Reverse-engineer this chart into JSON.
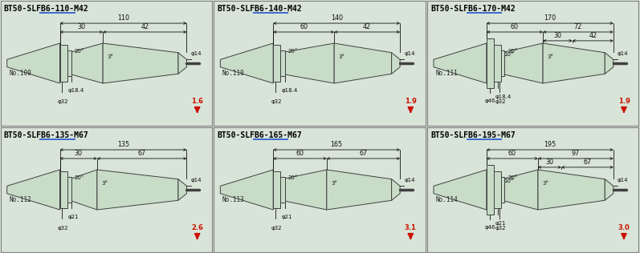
{
  "panels": [
    {
      "title_prefix": "BT50-",
      "title_underlined": "SLFB6",
      "title_suffix": "-110-M42",
      "number": "No.109",
      "dim_total": "110",
      "dim_left": "30",
      "dim_right": "42",
      "angle1": "20°",
      "angle2": "3°",
      "phi_tip": "φ14",
      "phi_mid": "φ18.4",
      "phi_base": "φ32",
      "phi_large": null,
      "weight": "1.6",
      "row": 0,
      "col": 0,
      "angle0": null,
      "dim_left2": null,
      "dim_right2": null
    },
    {
      "title_prefix": "BT50-",
      "title_underlined": "SLFB6",
      "title_suffix": "-140-M42",
      "number": "No.110",
      "dim_total": "140",
      "dim_left": "60",
      "dim_right": "42",
      "angle1": "20°",
      "angle2": "3°",
      "phi_tip": "φ14",
      "phi_mid": "φ18.4",
      "phi_base": "φ32",
      "phi_large": null,
      "weight": "1.9",
      "row": 0,
      "col": 1,
      "angle0": null,
      "dim_left2": null,
      "dim_right2": null
    },
    {
      "title_prefix": "BT50-",
      "title_underlined": "SLFB6",
      "title_suffix": "-170-M42",
      "number": "No.111",
      "dim_total": "170",
      "dim_left": "60",
      "dim_right": "72",
      "dim_left2": "30",
      "dim_right2": "42",
      "angle0": "10°",
      "angle1": "20°",
      "angle2": "3°",
      "phi_tip": "φ14",
      "phi_mid": "φ18.4",
      "phi_base": "φ32",
      "phi_large": "φ46",
      "weight": "1.9",
      "row": 0,
      "col": 2,
      "extra_dim": "170"
    },
    {
      "title_prefix": "BT50-",
      "title_underlined": "SLFB6",
      "title_suffix": "-135-M67",
      "number": "No.112",
      "dim_total": "135",
      "dim_left": "30",
      "dim_right": "67",
      "angle1": "20°",
      "angle2": "3°",
      "phi_tip": "φ14",
      "phi_mid": "φ21",
      "phi_base": "φ32",
      "phi_large": null,
      "weight": "2.6",
      "row": 1,
      "col": 0,
      "angle0": null,
      "dim_left2": null,
      "dim_right2": null
    },
    {
      "title_prefix": "BT50-",
      "title_underlined": "SLFB6",
      "title_suffix": "-165-M67",
      "number": "No.113",
      "dim_total": "165",
      "dim_left": "60",
      "dim_right": "67",
      "angle1": "20°",
      "angle2": "3°",
      "phi_tip": "φ14",
      "phi_mid": "φ21",
      "phi_base": "φ32",
      "phi_large": null,
      "weight": "3.1",
      "row": 1,
      "col": 1,
      "angle0": null,
      "dim_left2": null,
      "dim_right2": null
    },
    {
      "title_prefix": "BT50-",
      "title_underlined": "SLFB6",
      "title_suffix": "-195-M67",
      "number": "No.114",
      "dim_total": "195",
      "dim_left": "60",
      "dim_right": "97",
      "dim_left2": "30",
      "dim_right2": "67",
      "angle0": "10°",
      "angle1": "20°",
      "angle2": "3°",
      "phi_tip": "φ14",
      "phi_mid": "φ21",
      "phi_base": "φ32",
      "phi_large": "φ46",
      "weight": "3.0",
      "row": 1,
      "col": 2,
      "extra_dim": "195"
    }
  ],
  "bg_color": "#d8e4d8",
  "tool_fill": "#c8dcc8",
  "tool_stroke": "#404040",
  "border_color": "#808080",
  "title_color": "#000000",
  "underline_color": "#2255cc",
  "arrow_color": "#cc1100",
  "dim_color": "#111111",
  "number_color": "#222222"
}
